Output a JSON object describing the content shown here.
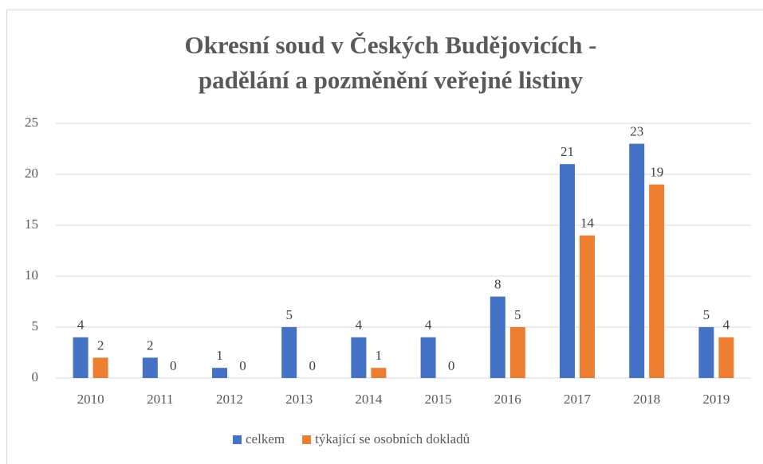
{
  "chart_data": {
    "type": "bar",
    "title": [
      "Okresní soud v Českých Budějovicích -",
      "padělání a pozměnění veřejné listiny"
    ],
    "categories": [
      "2010",
      "2011",
      "2012",
      "2013",
      "2014",
      "2015",
      "2016",
      "2017",
      "2018",
      "2019"
    ],
    "series": [
      {
        "name": "celkem",
        "color": "#4472c4",
        "values": [
          4,
          2,
          1,
          5,
          4,
          4,
          8,
          21,
          23,
          5
        ]
      },
      {
        "name": "týkající se osobních dokladů",
        "color": "#ed7d31",
        "values": [
          2,
          0,
          0,
          0,
          1,
          0,
          5,
          14,
          19,
          4
        ]
      }
    ],
    "ylim": [
      0,
      25
    ],
    "yticks": [
      0,
      5,
      10,
      15,
      20,
      25
    ],
    "grid": true,
    "legend": "bottom"
  }
}
